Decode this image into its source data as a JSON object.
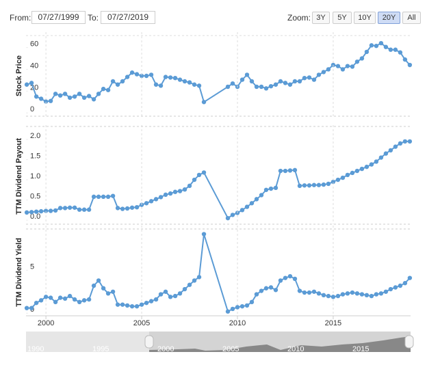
{
  "controls": {
    "from_label": "From:",
    "from": "07/27/1999",
    "to_label": "To:",
    "to": "07/27/2019",
    "zoom_label": "Zoom:",
    "zoom": [
      "3Y",
      "5Y",
      "10Y",
      "20Y",
      "All"
    ],
    "zoom_active": "20Y"
  },
  "navigator": {
    "labels": [
      1990,
      1995,
      2000,
      2005,
      2010,
      2015
    ]
  },
  "chart_data": [
    {
      "type": "line",
      "y_label": "Stock Price",
      "color": "#5b9bd5",
      "x": [
        1999,
        1999.25,
        1999.5,
        1999.75,
        2000,
        2000.25,
        2000.5,
        2000.75,
        2001,
        2001.25,
        2001.5,
        2001.75,
        2002,
        2002.25,
        2002.5,
        2002.75,
        2003,
        2003.25,
        2003.5,
        2003.75,
        2004,
        2004.25,
        2004.5,
        2004.75,
        2005,
        2005.25,
        2005.5,
        2005.75,
        2006,
        2006.25,
        2006.5,
        2006.75,
        2007,
        2007.25,
        2007.5,
        2007.75,
        2008,
        2008.25,
        2009.5,
        2009.75,
        2010,
        2010.25,
        2010.5,
        2010.75,
        2011,
        2011.25,
        2011.5,
        2011.75,
        2012,
        2012.25,
        2012.5,
        2012.75,
        2013,
        2013.25,
        2013.5,
        2013.75,
        2014,
        2014.25,
        2014.5,
        2014.75,
        2015,
        2015.25,
        2015.5,
        2015.75,
        2016,
        2016.25,
        2016.5,
        2016.75,
        2017,
        2017.25,
        2017.5,
        2017.75,
        2018,
        2018.25,
        2018.5,
        2018.75,
        2019
      ],
      "values": [
        26,
        27.5,
        15,
        13,
        10.5,
        11,
        17.5,
        16,
        17.5,
        14,
        15,
        17.5,
        14,
        15.5,
        12.5,
        17.5,
        22,
        21,
        29,
        26,
        29,
        33,
        37,
        35.5,
        34,
        34,
        35,
        26,
        25,
        33,
        32.5,
        32,
        30.5,
        29,
        28,
        26,
        25,
        10,
        24,
        27,
        24,
        30.5,
        35,
        29,
        24,
        24,
        22.5,
        24.5,
        26,
        29,
        27.5,
        26,
        29,
        29,
        32,
        32.5,
        30.5,
        35,
        37.5,
        40,
        44,
        43,
        40,
        43,
        42.5,
        47,
        50,
        56,
        62,
        61.5,
        64,
        60.5,
        58,
        58,
        55.5,
        49,
        44
      ],
      "xlim": [
        1998.96,
        2019.04
      ],
      "ylim": [
        -3,
        71
      ],
      "yticks": [
        0,
        20,
        40,
        60
      ]
    },
    {
      "type": "line",
      "y_label": "TTM Dividend Payout",
      "color": "#5b9bd5",
      "x": [
        1999,
        1999.25,
        1999.5,
        1999.75,
        2000,
        2000.25,
        2000.5,
        2000.75,
        2001,
        2001.25,
        2001.5,
        2001.75,
        2002,
        2002.25,
        2002.5,
        2002.75,
        2003,
        2003.25,
        2003.5,
        2003.75,
        2004,
        2004.25,
        2004.5,
        2004.75,
        2005,
        2005.25,
        2005.5,
        2005.75,
        2006,
        2006.25,
        2006.5,
        2006.75,
        2007,
        2007.25,
        2007.5,
        2007.75,
        2008,
        2008.25,
        2009.5,
        2009.75,
        2010,
        2010.25,
        2010.5,
        2010.75,
        2011,
        2011.25,
        2011.5,
        2011.75,
        2012,
        2012.25,
        2012.5,
        2012.75,
        2013,
        2013.25,
        2013.5,
        2013.75,
        2014,
        2014.25,
        2014.5,
        2014.75,
        2015,
        2015.25,
        2015.5,
        2015.75,
        2016,
        2016.25,
        2016.5,
        2016.75,
        2017,
        2017.25,
        2017.5,
        2017.75,
        2018,
        2018.25,
        2018.5,
        2018.75,
        2019
      ],
      "values": [
        0.19,
        0.2,
        0.21,
        0.22,
        0.23,
        0.23,
        0.24,
        0.3,
        0.3,
        0.31,
        0.31,
        0.26,
        0.26,
        0.26,
        0.58,
        0.58,
        0.58,
        0.58,
        0.6,
        0.3,
        0.28,
        0.29,
        0.31,
        0.32,
        0.38,
        0.42,
        0.47,
        0.52,
        0.57,
        0.63,
        0.66,
        0.7,
        0.72,
        0.76,
        0.85,
        1.0,
        1.12,
        1.18,
        0.05,
        0.13,
        0.18,
        0.25,
        0.33,
        0.42,
        0.52,
        0.62,
        0.75,
        0.78,
        0.8,
        1.22,
        1.22,
        1.23,
        1.24,
        0.85,
        0.86,
        0.86,
        0.87,
        0.87,
        0.88,
        0.9,
        0.95,
        1.0,
        1.05,
        1.12,
        1.17,
        1.22,
        1.27,
        1.32,
        1.38,
        1.45,
        1.55,
        1.65,
        1.73,
        1.82,
        1.9,
        1.95,
        1.95
      ],
      "xlim": [
        1998.96,
        2019.04
      ],
      "ylim": [
        -0.1,
        2.27
      ],
      "yticks": [
        {
          "value": 0,
          "label": "0.0"
        },
        0.5,
        {
          "value": 1,
          "label": "1.0"
        },
        1.5,
        {
          "value": 2,
          "label": "2.0"
        }
      ]
    },
    {
      "type": "line",
      "y_label": "TTM Dividend Yield",
      "color": "#5b9bd5",
      "x": [
        1999,
        1999.25,
        1999.5,
        1999.75,
        2000,
        2000.25,
        2000.5,
        2000.75,
        2001,
        2001.25,
        2001.5,
        2001.75,
        2002,
        2002.25,
        2002.5,
        2002.75,
        2003,
        2003.25,
        2003.5,
        2003.75,
        2004,
        2004.25,
        2004.5,
        2004.75,
        2005,
        2005.25,
        2005.5,
        2005.75,
        2006,
        2006.25,
        2006.5,
        2006.75,
        2007,
        2007.25,
        2007.5,
        2007.75,
        2008,
        2008.25,
        2009.5,
        2009.75,
        2010,
        2010.25,
        2010.5,
        2010.75,
        2011,
        2011.25,
        2011.5,
        2011.75,
        2012,
        2012.25,
        2012.5,
        2012.75,
        2013,
        2013.25,
        2013.5,
        2013.75,
        2014,
        2014.25,
        2014.5,
        2014.75,
        2015,
        2015.25,
        2015.5,
        2015.75,
        2016,
        2016.25,
        2016.5,
        2016.75,
        2017,
        2017.25,
        2017.5,
        2017.75,
        2018,
        2018.25,
        2018.5,
        2018.75,
        2019
      ],
      "values": [
        0.6,
        0.6,
        1.2,
        1.5,
        1.9,
        1.8,
        1.3,
        1.8,
        1.7,
        2.0,
        1.6,
        1.3,
        1.5,
        1.6,
        3.2,
        3.8,
        2.9,
        2.3,
        2.5,
        1.0,
        1.0,
        0.9,
        0.8,
        0.8,
        1.0,
        1.2,
        1.4,
        1.6,
        2.2,
        2.5,
        1.9,
        2.0,
        2.3,
        2.8,
        3.3,
        3.8,
        4.2,
        9.2,
        0.2,
        0.5,
        0.7,
        0.8,
        0.9,
        1.3,
        2.2,
        2.6,
        2.9,
        3.0,
        2.7,
        3.8,
        4.1,
        4.3,
        4.0,
        2.6,
        2.4,
        2.4,
        2.5,
        2.3,
        2.1,
        2.0,
        1.9,
        2.0,
        2.2,
        2.3,
        2.4,
        2.3,
        2.2,
        2.1,
        2.0,
        2.2,
        2.3,
        2.5,
        2.8,
        3.0,
        3.2,
        3.5,
        4.1
      ],
      "xlim": [
        1998.96,
        2019.04
      ],
      "ylim": [
        -0.3,
        9.8
      ],
      "yticks": [
        0,
        5
      ],
      "xticks": [
        2000,
        2005,
        2010,
        2015
      ],
      "xgrid": true
    }
  ]
}
